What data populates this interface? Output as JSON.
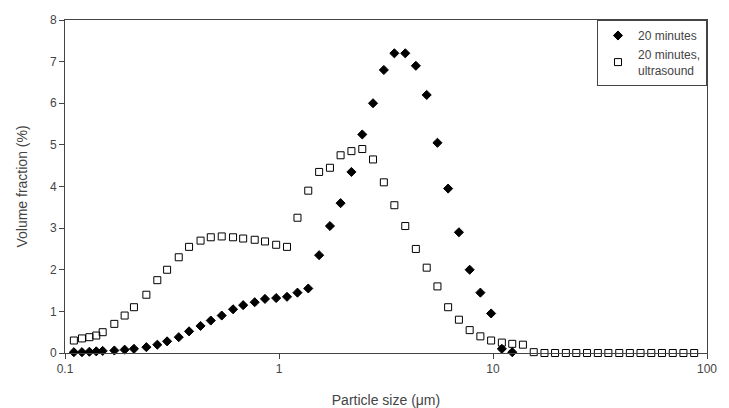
{
  "chart_data": {
    "type": "scatter",
    "x_label": "Particle size (μm)",
    "y_label": "Volume fraction (%)",
    "log": "x",
    "grid": false,
    "legend": "upper right",
    "xlim": [
      0.1,
      100
    ],
    "xticks": [
      0.1,
      1,
      10,
      100
    ],
    "ylim": [
      0,
      8
    ],
    "yticks": [
      0,
      1,
      2,
      3,
      4,
      5,
      6,
      7,
      8
    ],
    "series": [
      {
        "name": "20 minutes",
        "color": "#000000",
        "marker": "diamond",
        "x": [
          0.11,
          0.12,
          0.13,
          0.14,
          0.15,
          0.17,
          0.19,
          0.21,
          0.24,
          0.27,
          0.3,
          0.34,
          0.38,
          0.43,
          0.48,
          0.54,
          0.61,
          0.68,
          0.77,
          0.86,
          0.97,
          1.09,
          1.22,
          1.37,
          1.54,
          1.73,
          1.94,
          2.18,
          2.45,
          2.75,
          3.09,
          3.46,
          3.89,
          4.36,
          4.9,
          5.5,
          6.17,
          6.93,
          7.78,
          8.73,
          9.8,
          11.0,
          12.3
        ],
        "values": [
          0.02,
          0.02,
          0.03,
          0.04,
          0.05,
          0.06,
          0.08,
          0.1,
          0.14,
          0.2,
          0.28,
          0.38,
          0.52,
          0.65,
          0.78,
          0.9,
          1.05,
          1.15,
          1.22,
          1.3,
          1.32,
          1.35,
          1.45,
          1.55,
          2.35,
          3.05,
          3.6,
          4.35,
          5.25,
          6.0,
          6.8,
          7.2,
          7.2,
          6.9,
          6.2,
          5.05,
          3.95,
          2.9,
          2.0,
          1.45,
          0.95,
          0.1,
          0.02
        ]
      },
      {
        "name": "20 minutes,\nultrasound",
        "color": "#000000",
        "marker": "square-open",
        "x": [
          0.11,
          0.12,
          0.13,
          0.14,
          0.15,
          0.17,
          0.19,
          0.21,
          0.24,
          0.27,
          0.3,
          0.34,
          0.38,
          0.43,
          0.48,
          0.54,
          0.61,
          0.68,
          0.77,
          0.86,
          0.97,
          1.09,
          1.22,
          1.37,
          1.54,
          1.73,
          1.94,
          2.18,
          2.45,
          2.75,
          3.09,
          3.46,
          3.89,
          4.36,
          4.9,
          5.5,
          6.17,
          6.93,
          7.78,
          8.73,
          9.8,
          11.0,
          12.3,
          13.8,
          15.5,
          17.4,
          19.5,
          21.9,
          24.5,
          27.5,
          30.9,
          34.6,
          38.9,
          43.6,
          48.9,
          54.9,
          61.6,
          69.2,
          77.6,
          87.1
        ],
        "values": [
          0.3,
          0.35,
          0.38,
          0.42,
          0.5,
          0.7,
          0.9,
          1.1,
          1.4,
          1.75,
          2.0,
          2.3,
          2.55,
          2.7,
          2.78,
          2.8,
          2.78,
          2.75,
          2.72,
          2.68,
          2.6,
          2.55,
          3.25,
          3.9,
          4.35,
          4.45,
          4.75,
          4.85,
          4.9,
          4.65,
          4.1,
          3.55,
          3.05,
          2.5,
          2.05,
          1.6,
          1.1,
          0.8,
          0.55,
          0.4,
          0.3,
          0.25,
          0.22,
          0.2,
          0.02,
          0.0,
          0.0,
          0.0,
          0.0,
          0.0,
          0.0,
          0.0,
          0.0,
          0.0,
          0.0,
          0.0,
          0.0,
          0.0,
          0.0,
          0.0
        ]
      }
    ]
  }
}
